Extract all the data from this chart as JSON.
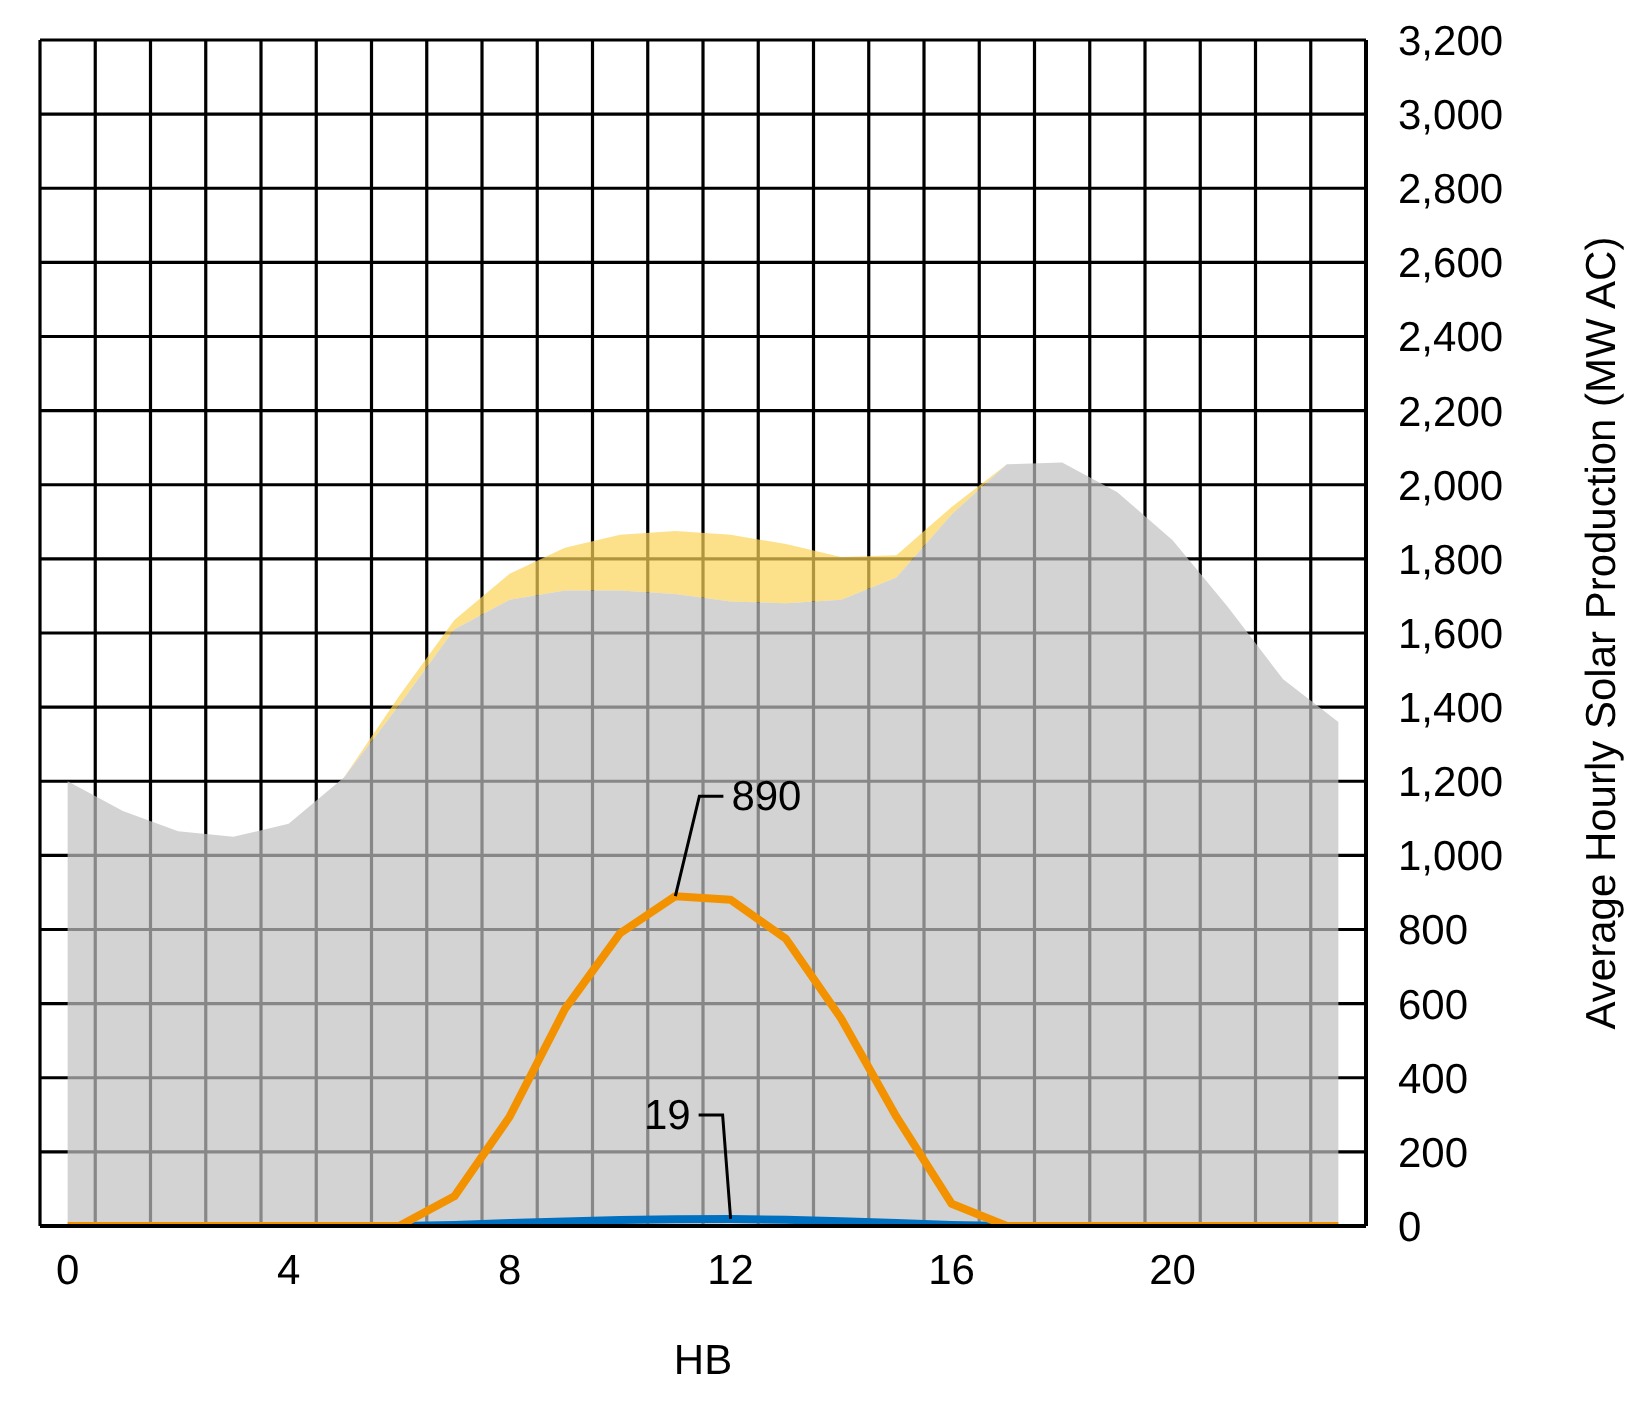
{
  "chart_data": {
    "type": "line",
    "xlabel": "HB",
    "ylabel": "Average Hourly Solar Production (MW AC)",
    "x": [
      0,
      1,
      2,
      3,
      4,
      5,
      6,
      7,
      8,
      9,
      10,
      11,
      12,
      13,
      14,
      15,
      16,
      17,
      18,
      19,
      20,
      21,
      22,
      23
    ],
    "series": [
      {
        "type": "area",
        "color": "#fde08a",
        "values": [
          1200,
          1120,
          1065,
          1050,
          1085,
          1210,
          1430,
          1635,
          1760,
          1830,
          1865,
          1875,
          1865,
          1840,
          1805,
          1810,
          1940,
          2055,
          2060,
          1980,
          1850,
          1670,
          1475,
          1360
        ]
      },
      {
        "type": "area",
        "color": "#d3d3d3",
        "values": [
          1200,
          1120,
          1065,
          1050,
          1085,
          1210,
          1405,
          1610,
          1690,
          1715,
          1715,
          1705,
          1685,
          1680,
          1690,
          1750,
          1920,
          2055,
          2060,
          1980,
          1850,
          1670,
          1475,
          1360
        ]
      },
      {
        "color": "#0070c0",
        "values": [
          null,
          null,
          null,
          null,
          null,
          null,
          0,
          3,
          8,
          12,
          16,
          18,
          19,
          17,
          13,
          8,
          3,
          0,
          null,
          null,
          null,
          null,
          null,
          null
        ]
      },
      {
        "color": "#f39200",
        "values": [
          0,
          0,
          0,
          0,
          0,
          0,
          0,
          80,
          295,
          585,
          790,
          890,
          880,
          775,
          560,
          295,
          60,
          0,
          0,
          0,
          0,
          0,
          0,
          0
        ]
      }
    ],
    "marker": "none",
    "grid": true,
    "legend": false,
    "xlim": [
      -0.5,
      23.5
    ],
    "xticks": [
      0,
      4,
      8,
      12,
      16,
      20,
      {
        "value": -0.5,
        "label": null
      },
      {
        "value": 0.5,
        "label": null
      },
      {
        "value": 1.5,
        "label": null
      },
      {
        "value": 2.5,
        "label": null
      },
      {
        "value": 3.5,
        "label": null
      },
      {
        "value": 4.5,
        "label": null
      },
      {
        "value": 5.5,
        "label": null
      },
      {
        "value": 6.5,
        "label": null
      },
      {
        "value": 7.5,
        "label": null
      },
      {
        "value": 8.5,
        "label": null
      },
      {
        "value": 9.5,
        "label": null
      },
      {
        "value": 10.5,
        "label": null
      },
      {
        "value": 11.5,
        "label": null
      },
      {
        "value": 12.5,
        "label": null
      },
      {
        "value": 13.5,
        "label": null
      },
      {
        "value": 14.5,
        "label": null
      },
      {
        "value": 15.5,
        "label": null
      },
      {
        "value": 16.5,
        "label": null
      },
      {
        "value": 17.5,
        "label": null
      },
      {
        "value": 18.5,
        "label": null
      },
      {
        "value": 19.5,
        "label": null
      },
      {
        "value": 20.5,
        "label": null
      },
      {
        "value": 21.5,
        "label": null
      },
      {
        "value": 22.5,
        "label": null
      },
      {
        "value": 23.5,
        "label": null
      }
    ],
    "ylim": [
      0,
      3200
    ],
    "yticks": [
      0,
      200,
      400,
      600,
      800,
      {
        "value": 1000,
        "label": "1,000"
      },
      {
        "value": 1200,
        "label": "1,200"
      },
      {
        "value": 1400,
        "label": "1,400"
      },
      {
        "value": 1600,
        "label": "1,600"
      },
      {
        "value": 1800,
        "label": "1,800"
      },
      {
        "value": 2000,
        "label": "2,000"
      },
      {
        "value": 2200,
        "label": "2,200"
      },
      {
        "value": 2400,
        "label": "2,400"
      },
      {
        "value": 2600,
        "label": "2,600"
      },
      {
        "value": 2800,
        "label": "2,800"
      },
      {
        "value": 3000,
        "label": "3,000"
      },
      {
        "value": 3200,
        "label": "3,200"
      }
    ],
    "annotations": [
      {
        "text": "890",
        "x": 11,
        "y": 890
      },
      {
        "text": "19",
        "x": 12,
        "y": 19
      }
    ]
  }
}
